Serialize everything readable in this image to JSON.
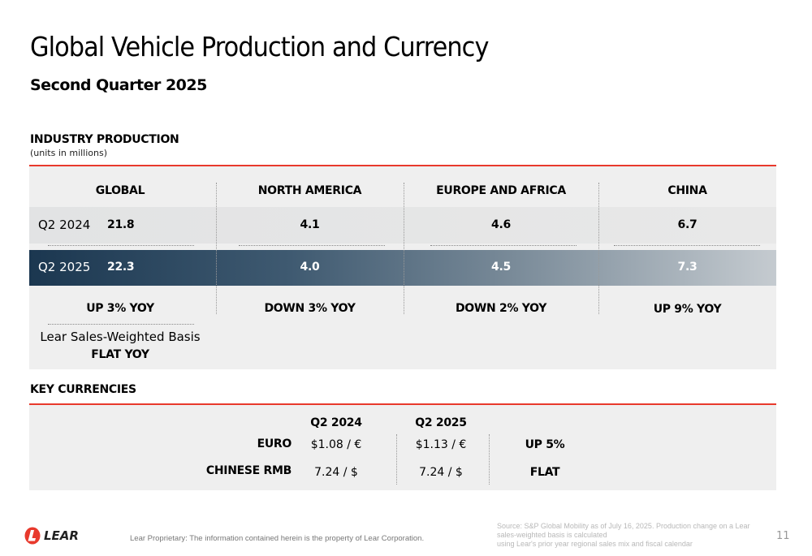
{
  "header": {
    "title": "Global Vehicle Production and Currency",
    "subtitle": "Second Quarter 2025"
  },
  "production": {
    "section_title": "INDUSTRY PRODUCTION",
    "units": "(units in millions)",
    "columns": [
      "GLOBAL",
      "NORTH AMERICA",
      "EUROPE AND AFRICA",
      "CHINA"
    ],
    "rows": [
      {
        "label": "Q2 2024",
        "values": [
          "21.8",
          "4.1",
          "4.6",
          "6.7"
        ]
      },
      {
        "label": "Q2 2025",
        "values": [
          "22.3",
          "4.0",
          "4.5",
          "7.3"
        ]
      }
    ],
    "yoy": [
      "UP 3% YOY",
      "DOWN 3% YOY",
      "DOWN 2% YOY",
      "UP 9% YOY"
    ],
    "lear_basis_label": "Lear Sales-Weighted Basis",
    "lear_basis_value": "FLAT YOY"
  },
  "currencies": {
    "section_title": "KEY CURRENCIES",
    "headers": [
      "Q2 2024",
      "Q2 2025"
    ],
    "rows": [
      {
        "label": "EURO",
        "q2_2024": "$1.08 / €",
        "q2_2025": "$1.13 / €",
        "change": "UP 5%"
      },
      {
        "label": "CHINESE RMB",
        "q2_2024": "7.24 / $",
        "q2_2025": "7.24 / $",
        "change": "FLAT"
      }
    ]
  },
  "footer": {
    "logo_text": "LEAR",
    "proprietary": "Lear Proprietary: The information contained herein is the property of Lear Corporation.",
    "source_line1": "Source: S&P Global Mobility as of July 16, 2025. Production change on a Lear sales-weighted basis is calculated",
    "source_line2": "using Lear's prior year regional sales mix and fiscal calendar",
    "page": "11"
  },
  "colors": {
    "accent": "#e8392c",
    "navy": "#1b3750"
  }
}
